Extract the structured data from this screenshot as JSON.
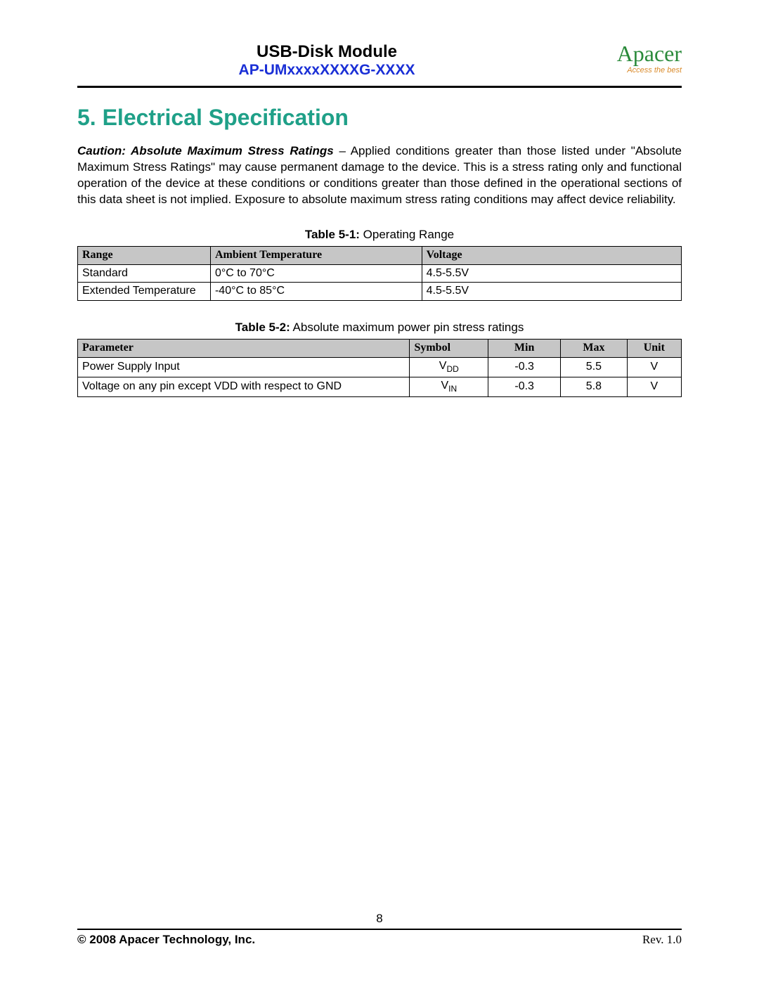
{
  "header": {
    "doc_title": "USB-Disk Module",
    "model": "AP-UMxxxxXXXXG-XXXX",
    "logo_text": "Apacer",
    "logo_tagline": "Access the best"
  },
  "section": {
    "heading": "5. Electrical Specification",
    "caution_lead": "Caution: Absolute Maximum Stress Ratings",
    "caution_body": " – Applied conditions greater than those listed under \"Absolute Maximum Stress Ratings\" may cause permanent damage to the device. This is a stress rating only and functional operation of the device at these conditions or conditions greater than those defined in the operational sections of this data sheet is not implied. Exposure to absolute maximum stress rating conditions may affect device reliability."
  },
  "table1": {
    "caption_bold": "Table 5-1:",
    "caption_rest": " Operating Range",
    "columns": [
      "Range",
      "Ambient Temperature",
      "Voltage"
    ],
    "rows": [
      [
        "Standard",
        "0°C to 70°C",
        "4.5-5.5V"
      ],
      [
        "Extended Temperature",
        "-40°C to 85°C",
        "4.5-5.5V"
      ]
    ]
  },
  "table2": {
    "caption_bold": "Table 5-2:",
    "caption_rest": " Absolute maximum power pin stress ratings",
    "columns": [
      "Parameter",
      "Symbol",
      "Min",
      "Max",
      "Unit"
    ],
    "rows": [
      {
        "parameter": "Power Supply Input",
        "symbol_main": "V",
        "symbol_sub": "DD",
        "min": "-0.3",
        "max": "5.5",
        "unit": "V"
      },
      {
        "parameter": "Voltage on any pin except VDD with respect to GND",
        "symbol_main": "V",
        "symbol_sub": "IN",
        "min": "-0.3",
        "max": "5.8",
        "unit": "V"
      }
    ]
  },
  "footer": {
    "page_number": "8",
    "copyright": "© 2008 Apacer Technology, Inc.",
    "revision_label": "Rev. ",
    "revision_value": "1.0"
  },
  "colors": {
    "heading": "#1fa088",
    "model": "#1a2fd6",
    "logo_green": "#2a8a3a",
    "logo_orange": "#d98a2a",
    "th_bg": "#c6c6c6"
  }
}
